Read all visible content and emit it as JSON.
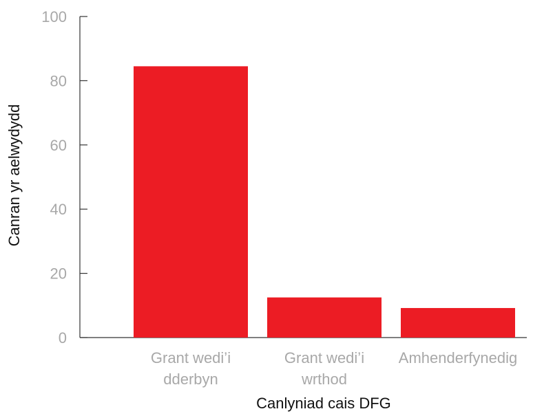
{
  "chart_data": {
    "type": "bar",
    "title": "",
    "xlabel": "Canlyniad cais DFG",
    "ylabel": "Canran yr aelwydydd",
    "categories": [
      [
        "Grant wedi’i",
        "dderbyn"
      ],
      [
        "Grant wedi’i",
        "wrthod"
      ],
      [
        "Amhenderfynedig"
      ]
    ],
    "values": [
      84.5,
      12.5,
      9.2
    ],
    "ylim": [
      0,
      100
    ],
    "yticks": [
      0,
      20,
      40,
      60,
      80,
      100
    ],
    "grid": false,
    "legend": "none",
    "colors": {
      "bar": "#ec1c24",
      "tick_label": "#a8a8a8",
      "axis_title": "#111111",
      "axis": "#333333"
    }
  }
}
